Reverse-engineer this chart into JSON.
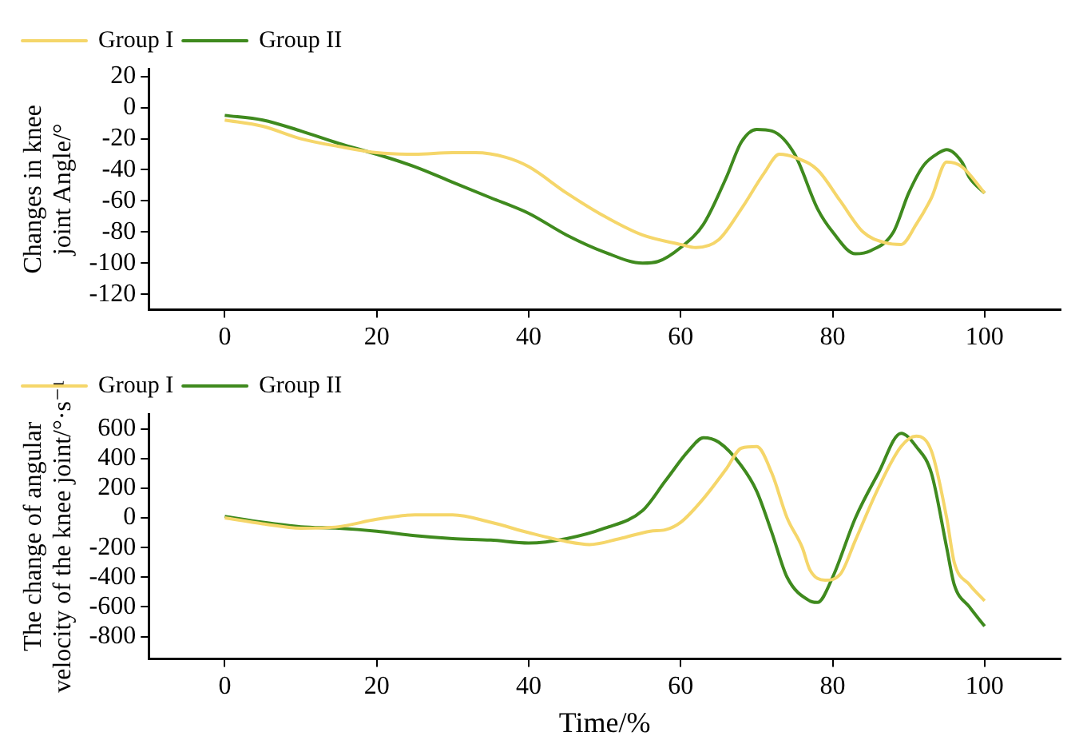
{
  "chart_data": [
    {
      "type": "line",
      "ylabel": "Changes in knee\njoint Angle/°",
      "xlim": [
        -10,
        110
      ],
      "xticks": [
        0,
        20,
        40,
        60,
        80,
        100
      ],
      "ylim": [
        -130,
        25
      ],
      "yticks": [
        -120,
        -100,
        -80,
        -60,
        -40,
        -20,
        0,
        20
      ],
      "grid": false,
      "legend": "top left",
      "marker": "none",
      "line_style": "solid",
      "series": [
        {
          "name": "Group I",
          "color": "#f5d66a",
          "x": [
            0,
            5,
            10,
            15,
            20,
            25,
            30,
            33,
            37,
            40,
            45,
            50,
            55,
            60,
            62,
            65,
            68,
            71,
            73,
            75,
            78,
            81,
            84,
            87,
            89,
            91,
            93,
            95,
            97,
            100
          ],
          "values": [
            -8,
            -12,
            -20,
            -25,
            -29,
            -30,
            -29,
            -29,
            -32,
            -38,
            -55,
            -70,
            -82,
            -88,
            -90,
            -85,
            -65,
            -42,
            -30,
            -32,
            -40,
            -60,
            -80,
            -87,
            -88,
            -75,
            -58,
            -35,
            -38,
            -55
          ]
        },
        {
          "name": "Group II",
          "color": "#3f8a1e",
          "x": [
            0,
            5,
            10,
            15,
            20,
            25,
            30,
            35,
            40,
            45,
            50,
            55,
            57,
            60,
            63,
            66,
            68,
            70,
            72,
            75,
            78,
            80,
            83,
            85,
            88,
            90,
            92,
            94,
            95,
            97,
            98,
            100
          ],
          "values": [
            -5,
            -8,
            -15,
            -23,
            -30,
            -38,
            -48,
            -58,
            -68,
            -82,
            -93,
            -100,
            -99,
            -90,
            -75,
            -45,
            -22,
            -14,
            -15,
            -30,
            -65,
            -80,
            -94,
            -92,
            -80,
            -55,
            -37,
            -29,
            -27,
            -35,
            -45,
            -55
          ]
        }
      ]
    },
    {
      "type": "line",
      "ylabel": "The change of angular\nvelocity of the knee joint/°·s⁻¹",
      "xlabel": "Time/%",
      "xlim": [
        -10,
        110
      ],
      "xticks": [
        0,
        20,
        40,
        60,
        80,
        100
      ],
      "ylim": [
        -950,
        700
      ],
      "yticks": [
        -800,
        -600,
        -400,
        -200,
        0,
        200,
        400,
        600
      ],
      "grid": false,
      "legend": "top left",
      "marker": "none",
      "line_style": "solid",
      "series": [
        {
          "name": "Group I",
          "color": "#f5d66a",
          "x": [
            0,
            5,
            10,
            15,
            20,
            25,
            30,
            35,
            40,
            45,
            48,
            52,
            56,
            58,
            60,
            63,
            66,
            68,
            70,
            72,
            74,
            76,
            77,
            79,
            81,
            83,
            86,
            89,
            91,
            93,
            95,
            96,
            98,
            100
          ],
          "values": [
            0,
            -40,
            -70,
            -60,
            -10,
            20,
            20,
            -30,
            -100,
            -160,
            -180,
            -140,
            -90,
            -80,
            -30,
            130,
            330,
            470,
            480,
            300,
            0,
            -200,
            -350,
            -420,
            -380,
            -150,
            200,
            480,
            550,
            450,
            0,
            -300,
            -450,
            -560
          ]
        },
        {
          "name": "Group II",
          "color": "#3f8a1e",
          "x": [
            0,
            5,
            10,
            15,
            20,
            25,
            30,
            35,
            40,
            45,
            50,
            55,
            58,
            61,
            63,
            65,
            68,
            70,
            72,
            74,
            77,
            78,
            80,
            83,
            86,
            89,
            91,
            93,
            95,
            96,
            98,
            100
          ],
          "values": [
            10,
            -30,
            -60,
            -70,
            -90,
            -120,
            -140,
            -150,
            -170,
            -140,
            -70,
            50,
            250,
            450,
            540,
            510,
            350,
            180,
            -100,
            -400,
            -560,
            -570,
            -400,
            0,
            300,
            570,
            480,
            300,
            -200,
            -450,
            -600,
            -730
          ]
        }
      ]
    }
  ]
}
